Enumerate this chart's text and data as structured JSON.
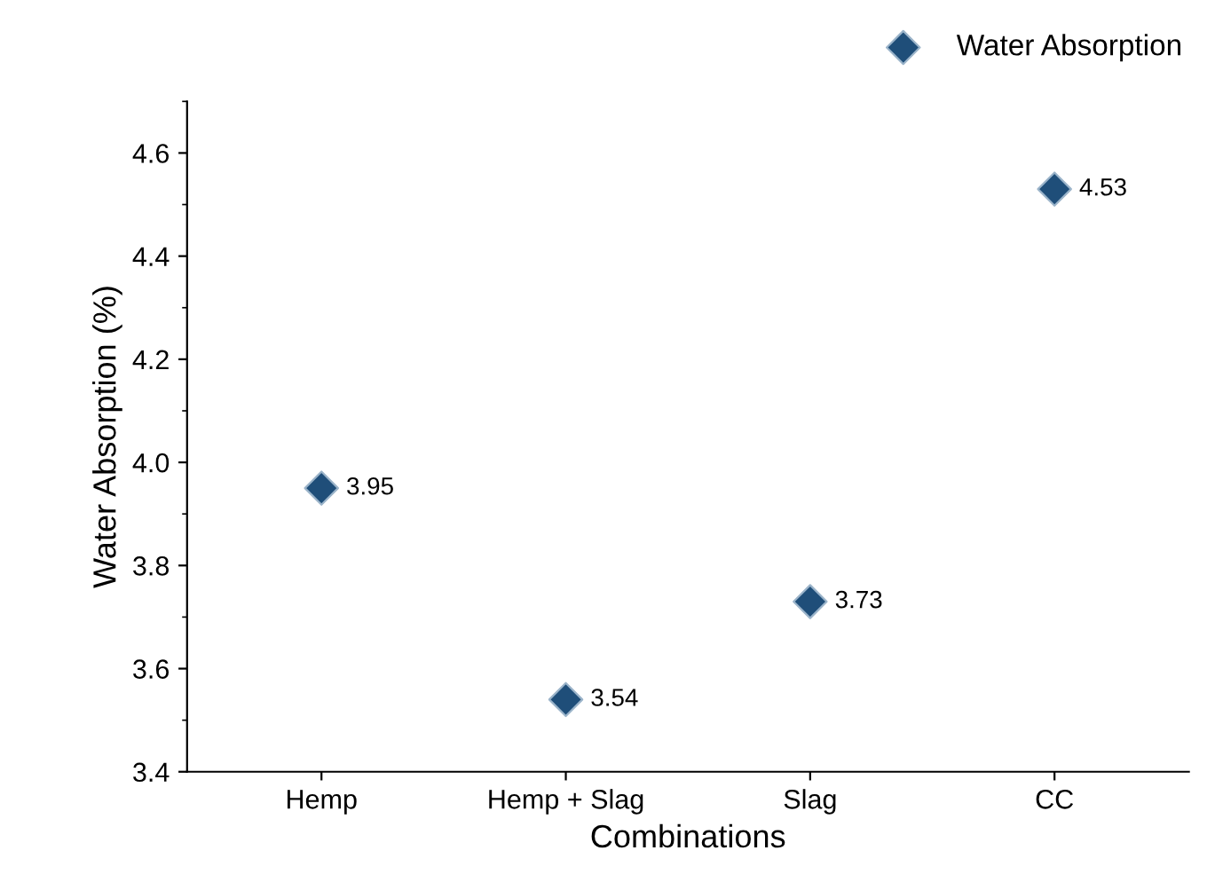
{
  "chart_data": {
    "type": "scatter",
    "xlabel": "Combinations",
    "ylabel": "Water Absorption (%)",
    "categories": [
      "Hemp",
      "Hemp + Slag",
      "Slag",
      "CC"
    ],
    "series": [
      {
        "name": "Water Absorption",
        "color": "#1f4e79",
        "values": [
          3.95,
          3.54,
          3.73,
          4.53
        ]
      }
    ],
    "ylim": [
      3.4,
      4.7
    ],
    "yticks": [
      3.4,
      3.6,
      3.8,
      {
        "value": 4,
        "label": "4.0"
      },
      4.2,
      4.4,
      4.6
    ],
    "data_labels": true,
    "legend": "top right",
    "marker": "diamond",
    "grid": false
  }
}
